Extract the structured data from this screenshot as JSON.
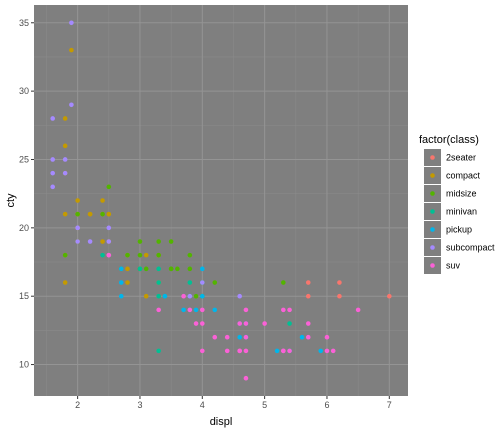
{
  "chart_data": {
    "type": "scatter",
    "title": "",
    "xlabel": "displ",
    "ylabel": "cty",
    "xlim": [
      1.3,
      7.3
    ],
    "ylim": [
      7.7,
      36.3
    ],
    "x_ticks": [
      2,
      3,
      4,
      5,
      6,
      7
    ],
    "y_ticks": [
      10,
      15,
      20,
      25,
      30,
      35
    ],
    "grid": true,
    "background": "#7f7f7f",
    "legend": {
      "title": "factor(class)",
      "placement": "right"
    },
    "series": [
      {
        "name": "2seater",
        "color": "#F8766D",
        "points": [
          [
            5.7,
            16
          ],
          [
            5.7,
            15
          ],
          [
            6.2,
            16
          ],
          [
            6.2,
            15
          ],
          [
            7.0,
            15
          ]
        ]
      },
      {
        "name": "compact",
        "color": "#C49A00",
        "points": [
          [
            1.8,
            18
          ],
          [
            1.8,
            21
          ],
          [
            2.0,
            20
          ],
          [
            2.0,
            21
          ],
          [
            2.8,
            16
          ],
          [
            2.8,
            18
          ],
          [
            3.1,
            18
          ],
          [
            3.1,
            15
          ],
          [
            1.8,
            16
          ],
          [
            2.0,
            20
          ],
          [
            2.4,
            21
          ],
          [
            2.4,
            19
          ],
          [
            2.5,
            21
          ],
          [
            2.5,
            19
          ],
          [
            2.2,
            21
          ],
          [
            2.2,
            21
          ],
          [
            2.4,
            22
          ],
          [
            1.8,
            28
          ],
          [
            1.8,
            26
          ],
          [
            1.8,
            24
          ],
          [
            1.9,
            33
          ],
          [
            2.0,
            22
          ],
          [
            2.8,
            17
          ],
          [
            3.3,
            18
          ],
          [
            3.3,
            16
          ],
          [
            2.0,
            21
          ],
          [
            2.0,
            19
          ],
          [
            2.5,
            21
          ]
        ]
      },
      {
        "name": "midsize",
        "color": "#53B400",
        "points": [
          [
            1.8,
            18
          ],
          [
            2.0,
            21
          ],
          [
            2.8,
            18
          ],
          [
            3.1,
            17
          ],
          [
            2.4,
            21
          ],
          [
            2.5,
            23
          ],
          [
            2.5,
            18
          ],
          [
            3.0,
            19
          ],
          [
            3.3,
            19
          ],
          [
            3.3,
            18
          ],
          [
            3.5,
            19
          ],
          [
            3.5,
            17
          ],
          [
            3.8,
            17
          ],
          [
            3.8,
            18
          ],
          [
            3.0,
            18
          ],
          [
            3.0,
            17
          ],
          [
            3.5,
            17
          ],
          [
            3.6,
            17
          ],
          [
            3.9,
            15
          ],
          [
            4.0,
            15
          ],
          [
            4.0,
            16
          ],
          [
            4.2,
            16
          ],
          [
            5.3,
            16
          ],
          [
            2.0,
            19
          ],
          [
            2.7,
            17
          ]
        ]
      },
      {
        "name": "minivan",
        "color": "#00C094",
        "points": [
          [
            2.4,
            18
          ],
          [
            3.0,
            17
          ],
          [
            3.3,
            17
          ],
          [
            3.3,
            16
          ],
          [
            3.3,
            15
          ],
          [
            3.3,
            11
          ],
          [
            3.8,
            15
          ],
          [
            3.8,
            16
          ],
          [
            4.0,
            16
          ],
          [
            5.4,
            13
          ],
          [
            3.4,
            15
          ]
        ]
      },
      {
        "name": "pickup",
        "color": "#00B6EB",
        "points": [
          [
            2.7,
            17
          ],
          [
            2.7,
            15
          ],
          [
            2.7,
            16
          ],
          [
            3.4,
            15
          ],
          [
            3.7,
            14
          ],
          [
            3.9,
            14
          ],
          [
            4.0,
            15
          ],
          [
            4.2,
            14
          ],
          [
            4.6,
            12
          ],
          [
            4.7,
            12
          ],
          [
            4.7,
            13
          ],
          [
            5.2,
            11
          ],
          [
            5.4,
            11
          ],
          [
            5.6,
            12
          ],
          [
            5.9,
            11
          ],
          [
            4.0,
            17
          ],
          [
            4.7,
            12
          ],
          [
            4.6,
            13
          ]
        ]
      },
      {
        "name": "subcompact",
        "color": "#A58AFF",
        "points": [
          [
            1.6,
            28
          ],
          [
            1.6,
            25
          ],
          [
            1.6,
            24
          ],
          [
            1.6,
            23
          ],
          [
            1.8,
            24
          ],
          [
            1.8,
            25
          ],
          [
            1.9,
            35
          ],
          [
            1.9,
            29
          ],
          [
            2.0,
            20
          ],
          [
            2.0,
            19
          ],
          [
            2.2,
            19
          ],
          [
            2.5,
            20
          ],
          [
            2.5,
            19
          ],
          [
            2.0,
            20
          ],
          [
            2.5,
            18
          ],
          [
            3.8,
            15
          ],
          [
            4.6,
            15
          ],
          [
            4.0,
            16
          ]
        ]
      },
      {
        "name": "suv",
        "color": "#FB61D7",
        "points": [
          [
            2.5,
            18
          ],
          [
            3.3,
            14
          ],
          [
            3.7,
            15
          ],
          [
            3.8,
            14
          ],
          [
            4.0,
            11
          ],
          [
            4.0,
            14
          ],
          [
            4.0,
            13
          ],
          [
            4.2,
            12
          ],
          [
            4.4,
            12
          ],
          [
            4.6,
            11
          ],
          [
            4.7,
            9
          ],
          [
            4.7,
            11
          ],
          [
            4.7,
            14
          ],
          [
            4.7,
            13
          ],
          [
            4.7,
            12
          ],
          [
            4.6,
            13
          ],
          [
            5.0,
            13
          ],
          [
            5.3,
            11
          ],
          [
            5.3,
            14
          ],
          [
            5.4,
            11
          ],
          [
            5.4,
            14
          ],
          [
            5.7,
            13
          ],
          [
            6.0,
            12
          ],
          [
            6.1,
            11
          ],
          [
            6.5,
            14
          ],
          [
            4.6,
            11
          ],
          [
            5.3,
            11
          ],
          [
            5.7,
            12
          ],
          [
            6.0,
            11
          ],
          [
            4.4,
            11
          ],
          [
            3.9,
            13
          ]
        ]
      }
    ]
  }
}
